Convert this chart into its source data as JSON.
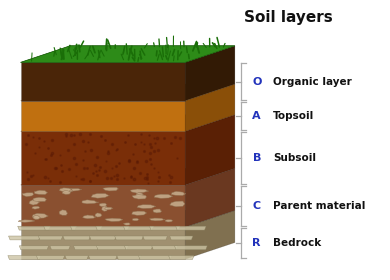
{
  "title": "Soil layers",
  "title_fontsize": 11,
  "title_color": "#111111",
  "background_color": "#ffffff",
  "layers": [
    {
      "label": "O",
      "name": "Organic layer",
      "top_color": "#2e7d1e",
      "front_color": "#4a2508",
      "side_color": "#321a05",
      "thickness": 0.5,
      "has_grass": true
    },
    {
      "label": "A",
      "name": "Topsoil",
      "top_color": "#c07010",
      "front_color": "#c07010",
      "side_color": "#8a4f08",
      "thickness": 0.4,
      "has_grass": false
    },
    {
      "label": "B",
      "name": "Subsoil",
      "top_color": "#7a2e08",
      "front_color": "#7a2e08",
      "side_color": "#5a2005",
      "thickness": 0.7,
      "has_grass": false
    },
    {
      "label": "C",
      "name": "Parent material",
      "top_color": "#8a5030",
      "front_color": "#8a5030",
      "side_color": "#6a3820",
      "thickness": 0.55,
      "has_grass": false
    },
    {
      "label": "R",
      "name": "Bedrock",
      "top_color": "#a09070",
      "front_color": "#a09070",
      "side_color": "#807050",
      "thickness": 0.42,
      "has_grass": false
    }
  ],
  "bracket_color": "#aaaaaa",
  "label_color": "#2233bb",
  "name_color": "#111111",
  "label_fontsize": 8,
  "name_fontsize": 7.5
}
